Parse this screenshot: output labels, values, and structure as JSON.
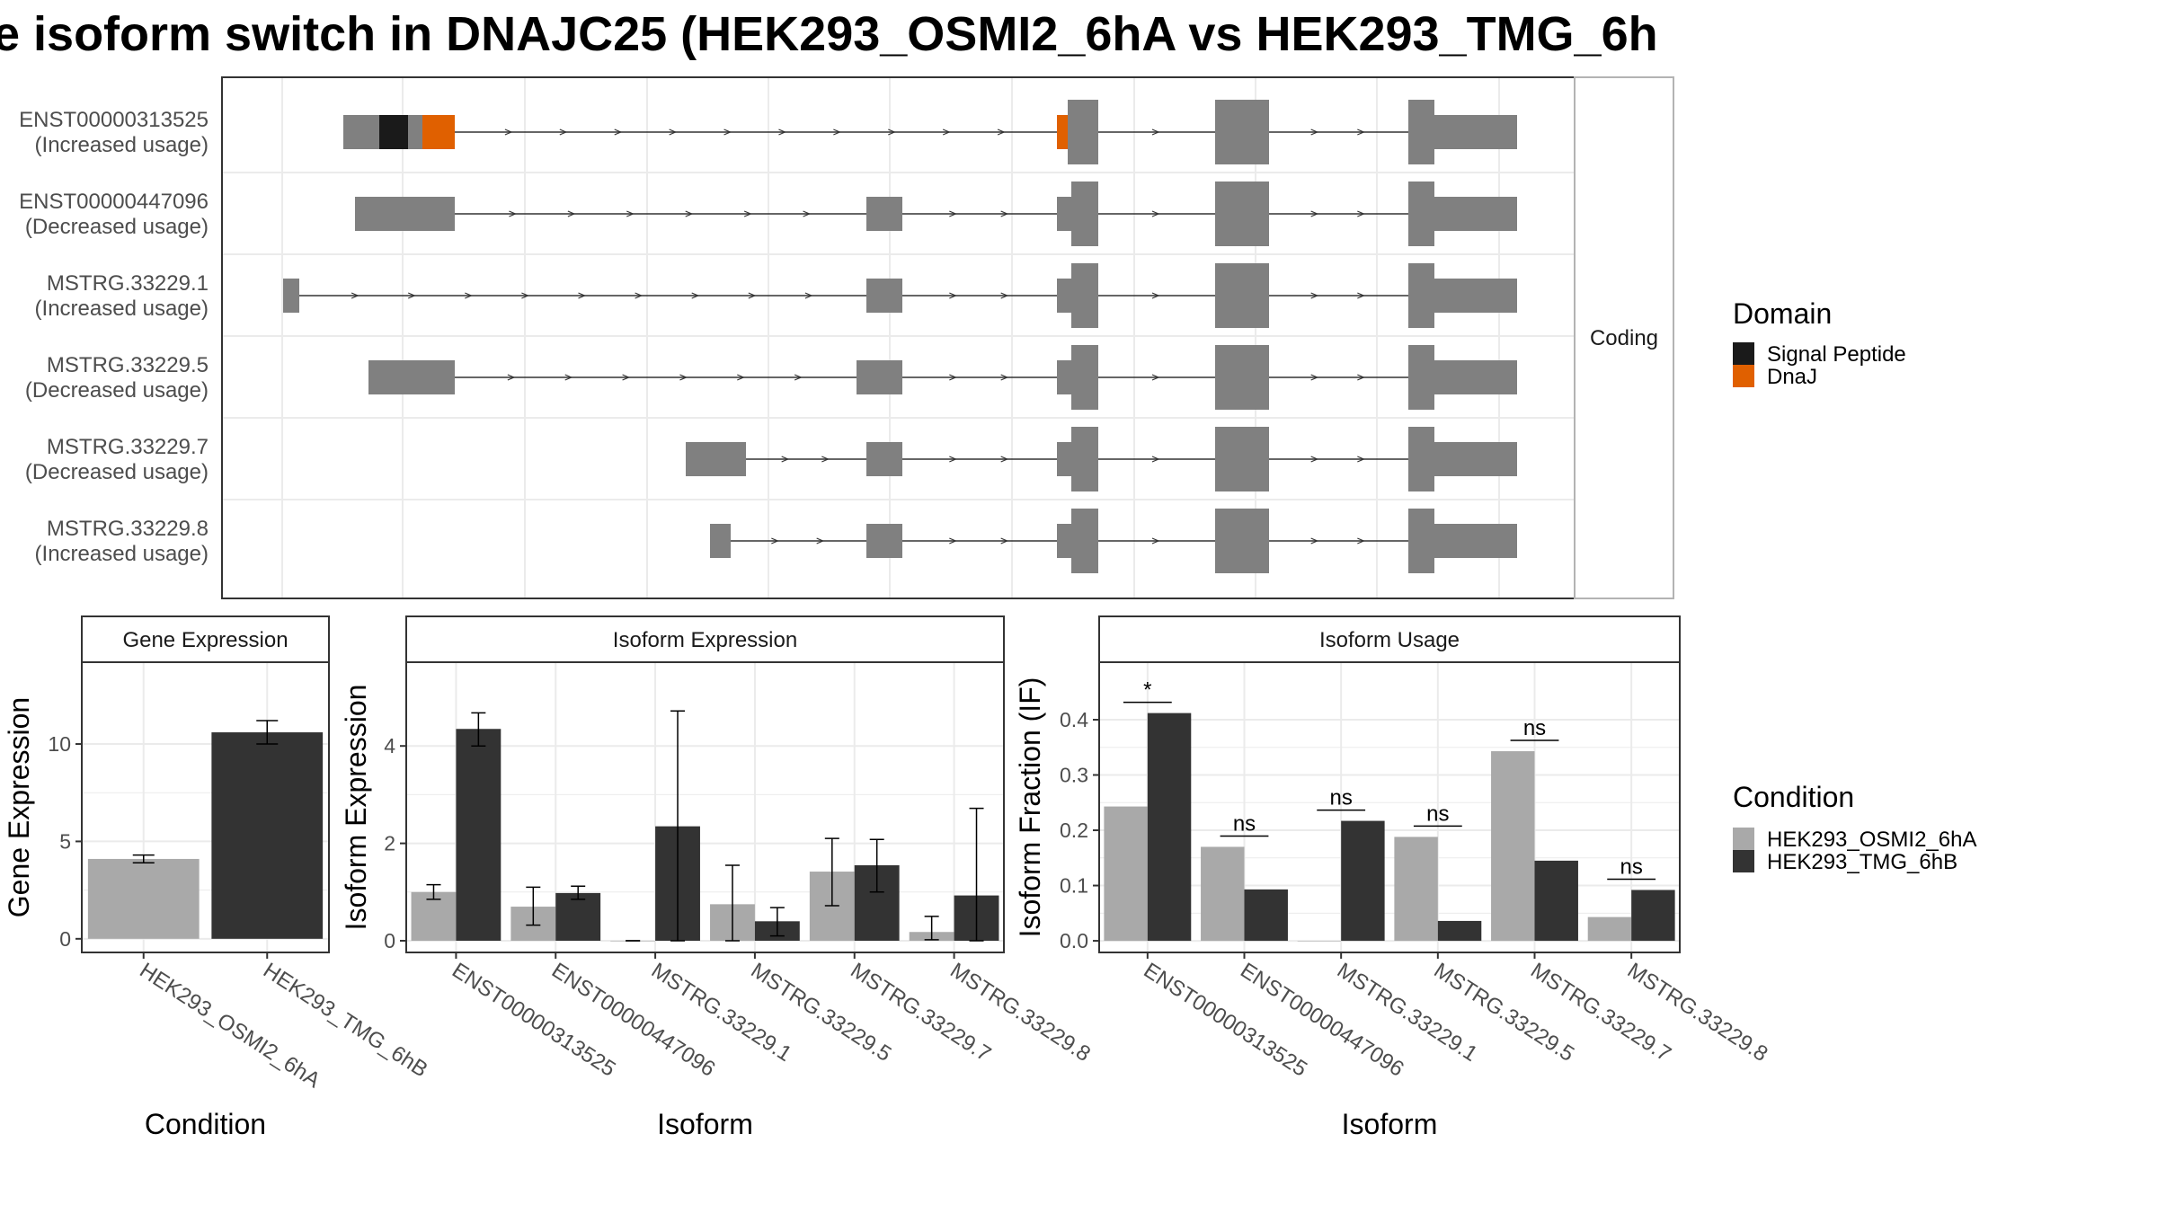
{
  "title": "e isoform switch in DNAJC25 (HEK293_OSMI2_6hA vs HEK293_TMG_6h",
  "colors": {
    "exon": "#808080",
    "signal_peptide": "#1a1a1a",
    "dnaj": "#e06000",
    "condition_a": "#a9a9a9",
    "condition_b": "#333333",
    "strip_bg": "#ffffff",
    "grid": "#ebebeb"
  },
  "structure_panel": {
    "strip_label": "Coding",
    "transcripts": [
      {
        "id": "ENST00000313525",
        "usage": "(Increased usage)"
      },
      {
        "id": "ENST00000447096",
        "usage": "(Decreased usage)"
      },
      {
        "id": "MSTRG.33229.1",
        "usage": "(Increased usage)"
      },
      {
        "id": "MSTRG.33229.5",
        "usage": "(Decreased usage)"
      },
      {
        "id": "MSTRG.33229.7",
        "usage": "(Decreased usage)"
      },
      {
        "id": "MSTRG.33229.8",
        "usage": "(Increased usage)"
      }
    ]
  },
  "domain_legend": {
    "title": "Domain",
    "items": [
      {
        "label": "Signal Peptide",
        "color": "#1a1a1a"
      },
      {
        "label": "DnaJ",
        "color": "#e06000"
      }
    ]
  },
  "condition_legend": {
    "title": "Condition",
    "items": [
      {
        "label": "HEK293_OSMI2_6hA",
        "color": "#a9a9a9"
      },
      {
        "label": "HEK293_TMG_6hB",
        "color": "#333333"
      }
    ]
  },
  "chart_data": [
    {
      "type": "bar",
      "title": "Gene Expression",
      "xlabel": "Condition",
      "ylabel": "Gene Expression",
      "categories": [
        "HEK293_OSMI2_6hA",
        "HEK293_TMG_6hB"
      ],
      "values": [
        4.1,
        10.6
      ],
      "err_low": [
        3.9,
        10.0
      ],
      "err_high": [
        4.3,
        11.2
      ],
      "ylim": [
        -0.7,
        14.2
      ],
      "yticks": [
        0,
        5,
        10
      ]
    },
    {
      "type": "bar",
      "title": "Isoform Expression",
      "xlabel": "Isoform",
      "ylabel": "Isoform Expression",
      "categories": [
        "ENST00000313525",
        "ENST00000447096",
        "MSTRG.33229.1",
        "MSTRG.33229.5",
        "MSTRG.33229.7",
        "MSTRG.33229.8"
      ],
      "series": [
        {
          "name": "HEK293_OSMI2_6hA",
          "values": [
            1.0,
            0.7,
            0.0,
            0.75,
            1.42,
            0.18
          ],
          "err_low": [
            0.85,
            0.32,
            0.0,
            0.0,
            0.72,
            0.02
          ],
          "err_high": [
            1.15,
            1.1,
            0.0,
            1.55,
            2.1,
            0.5
          ]
        },
        {
          "name": "HEK293_TMG_6hB",
          "values": [
            4.35,
            0.98,
            2.35,
            0.4,
            1.55,
            0.93
          ],
          "err_low": [
            4.0,
            0.85,
            0.0,
            0.1,
            1.0,
            0.0
          ],
          "err_high": [
            4.68,
            1.12,
            4.72,
            0.68,
            2.08,
            2.72
          ]
        }
      ],
      "ylim": [
        -0.24,
        5.72
      ],
      "yticks": [
        0,
        2,
        4
      ]
    },
    {
      "type": "bar",
      "title": "Isoform Usage",
      "xlabel": "Isoform",
      "ylabel": "Isoform Fraction (IF)",
      "categories": [
        "ENST00000313525",
        "ENST00000447096",
        "MSTRG.33229.1",
        "MSTRG.33229.5",
        "MSTRG.33229.7",
        "MSTRG.33229.8"
      ],
      "series": [
        {
          "name": "HEK293_OSMI2_6hA",
          "values": [
            0.243,
            0.17,
            0.0,
            0.188,
            0.343,
            0.043
          ]
        },
        {
          "name": "HEK293_TMG_6hB",
          "values": [
            0.412,
            0.093,
            0.217,
            0.036,
            0.145,
            0.092
          ]
        }
      ],
      "significance": [
        "*",
        "ns",
        "ns",
        "ns",
        "ns",
        "ns"
      ],
      "ylim": [
        -0.021,
        0.504
      ],
      "yticks": [
        0.0,
        0.1,
        0.2,
        0.3,
        0.4
      ]
    }
  ]
}
